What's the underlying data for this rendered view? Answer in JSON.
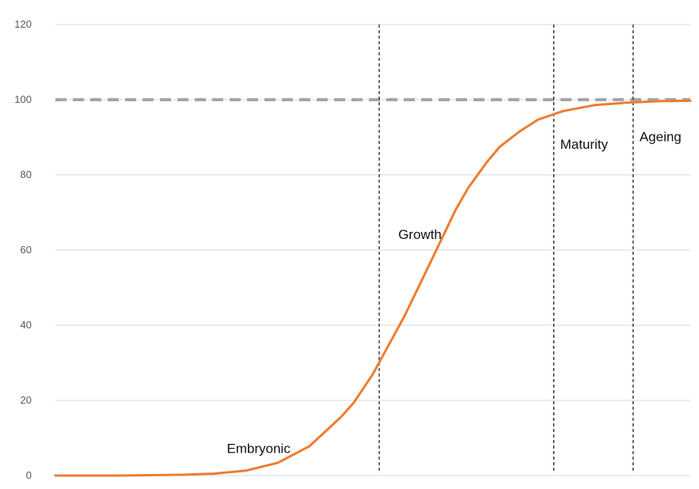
{
  "chart_data": {
    "type": "line",
    "title": "",
    "xlabel": "",
    "ylabel": "",
    "ylim": [
      0,
      120
    ],
    "yticks": [
      0,
      20,
      40,
      60,
      80,
      100,
      120
    ],
    "xlim": [
      0,
      100
    ],
    "grid": true,
    "reference_line": {
      "y": 100,
      "style": "dashed",
      "color": "#a6a6a6"
    },
    "series": [
      {
        "color": "#ed7d31",
        "x": [
          0,
          10,
          20,
          25,
          30,
          35,
          40,
          45,
          47,
          50,
          55,
          58,
          60,
          63,
          65,
          68,
          70,
          73,
          76,
          80,
          85,
          90,
          95,
          100
        ],
        "y": [
          0,
          0,
          0.2,
          0.5,
          1.3,
          3.4,
          7.8,
          15.6,
          19.4,
          27,
          42.5,
          53,
          60,
          70.6,
          76.5,
          83.5,
          87.5,
          91.4,
          94.7,
          97,
          98.6,
          99.2,
          99.6,
          99.7
        ]
      }
    ],
    "phase_boundaries": [
      51,
      78.5,
      91
    ],
    "annotations": [
      {
        "text": "Embryonic",
        "x": 27,
        "y": 6
      },
      {
        "text": "Growth",
        "x": 54,
        "y": 63
      },
      {
        "text": "Maturity",
        "x": 79.5,
        "y": 87
      },
      {
        "text": "Ageing",
        "x": 92,
        "y": 89
      }
    ]
  }
}
